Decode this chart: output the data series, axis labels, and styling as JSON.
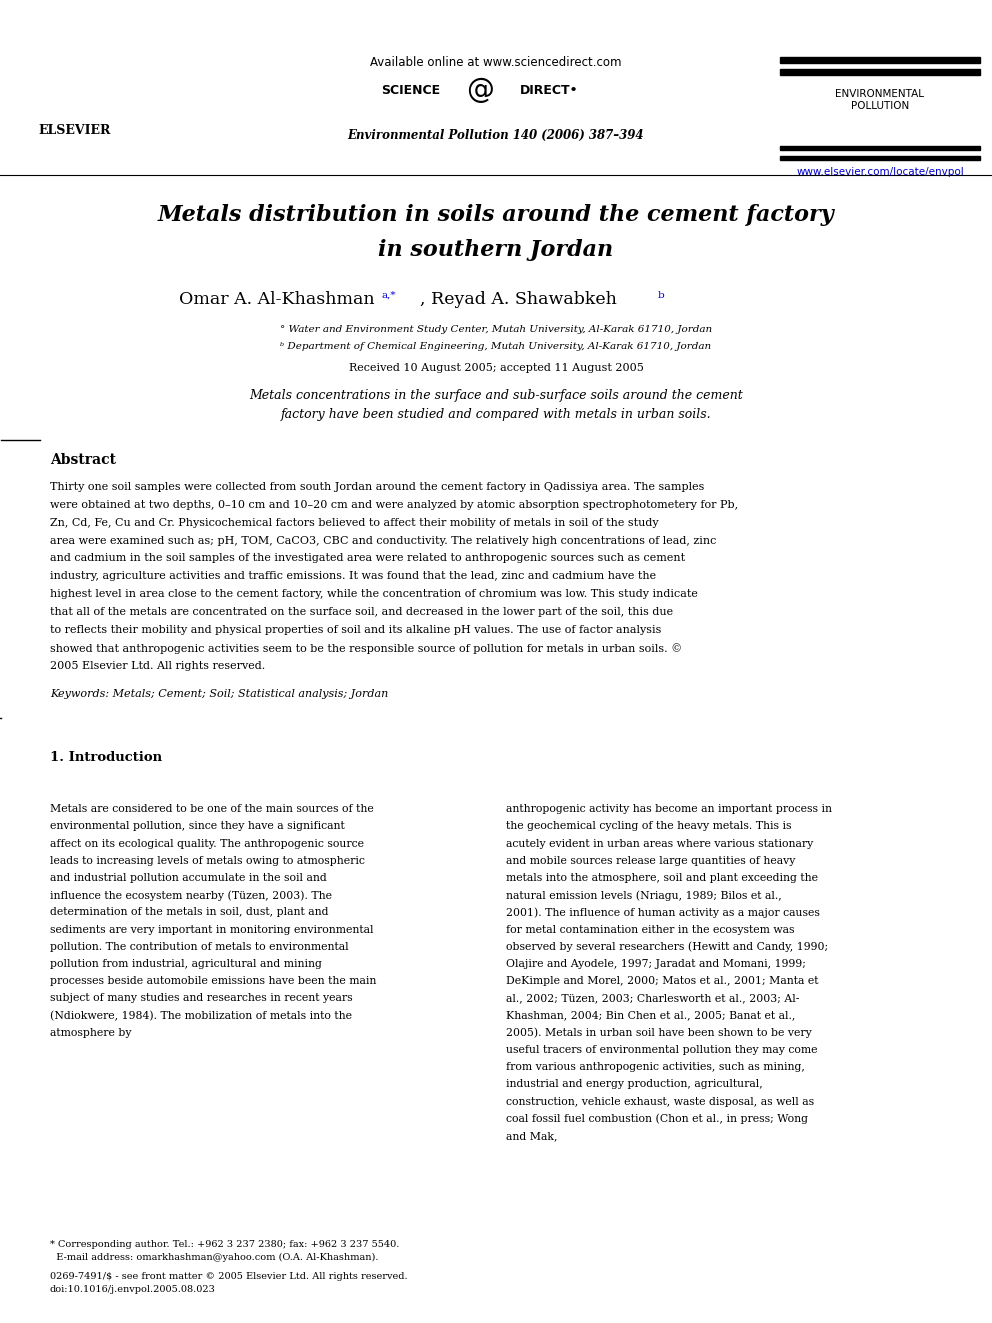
{
  "bg_color": "#ffffff",
  "title_line1": "Metals distribution in soils around the cement factory",
  "title_line2": "in southern Jordan",
  "authors": "Omar A. Al-Khashman ",
  "authors2": ", Reyad A. Shawabkeh ",
  "author_super1": "a,*",
  "author_super2": "b",
  "affil_a": "° Water and Environment Study Center, Mutah University, Al-Karak 61710, Jordan",
  "affil_b": "ᵇ Department of Chemical Engineering, Mutah University, Al-Karak 61710, Jordan",
  "received": "Received 10 August 2005; accepted 11 August 2005",
  "header_avail": "Available online at www.sciencedirect.com",
  "header_journal_abbr": "Environmental Pollution 140 (2006) 387–394",
  "header_journal": "ENVIRONMENTAL\nPOLLUTION",
  "header_url": "www.elsevier.com/locate/envpol",
  "elsevier_text": "ELSEVIER",
  "graphical_abstract": "Metals concentrations in the surface and sub-surface soils around the cement\nfactory have been studied and compared with metals in urban soils.",
  "abstract_title": "Abstract",
  "abstract_body": "Thirty one soil samples were collected from south Jordan around the cement factory in Qadissiya area. The samples were obtained at two depths, 0–10 cm and 10–20 cm and were analyzed by atomic absorption spectrophotometery for Pb, Zn, Cd, Fe, Cu and Cr. Physicochemical factors believed to affect their mobility of metals in soil of the study area were examined such as; pH, TOM, CaCO3, CBC and conductivity. The relatively high concentrations of lead, zinc and cadmium in the soil samples of the investigated area were related to anthropogenic sources such as cement industry, agriculture activities and traffic emissions. It was found that the lead, zinc and cadmium have the highest level in area close to the cement factory, while the concentration of chromium was low. This study indicate that all of the metals are concentrated on the surface soil, and decreased in the lower part of the soil, this due to reflects their mobility and physical properties of soil and its alkaline pH values. The use of factor analysis showed that anthropogenic activities seem to be the responsible source of pollution for metals in urban soils.\n© 2005 Elsevier Ltd. All rights reserved.",
  "keywords": "Keywords: Metals; Cement; Soil; Statistical analysis; Jordan",
  "intro_title": "1. Introduction",
  "intro_col1": "Metals are considered to be one of the main sources of the environmental pollution, since they have a significant affect on its ecological quality. The anthropogenic source leads to increasing levels of metals owing to atmospheric and industrial pollution accumulate in the soil and influence the ecosystem nearby (Tüzen, 2003). The determination of the metals in soil, dust, plant and sediments are very important in monitoring environmental pollution. The contribution of metals to environmental pollution from industrial, agricultural and mining processes beside automobile emissions have been the main subject of many studies and researches in recent years (Ndiokwere, 1984). The mobilization of metals into the atmosphere by",
  "intro_col2": "anthropogenic activity has become an important process in the geochemical cycling of the heavy metals. This is acutely evident in urban areas where various stationary and mobile sources release large quantities of heavy metals into the atmosphere, soil and plant exceeding the natural emission levels (Nriagu, 1989; Bilos et al., 2001). The influence of human activity as a major causes for metal contamination either in the ecosystem was observed by several researchers (Hewitt and Candy, 1990; Olajire and Ayodele, 1997; Jaradat and Momani, 1999; DeKimple and Morel, 2000; Matos et al., 2001; Manta et al., 2002; Tüzen, 2003; Charlesworth et al., 2003; Al-Khashman, 2004; Bin Chen et al., 2005; Banat et al., 2005). Metals in urban soil have been shown to be very useful tracers of environmental pollution they may come from various anthropogenic activities, such as mining, industrial and energy production, agricultural, construction, vehicle exhaust, waste disposal, as well as coal fossil fuel combustion (Chon et al., in press; Wong and Mak,",
  "footer_note": "* Corresponding author. Tel.: +962 3 237 2380; fax: +962 3 237 5540.\n  E-mail address: omarkhashman@yahoo.com (O.A. Al-Khashman).",
  "footer_issn": "0269-7491/$ - see front matter © 2005 Elsevier Ltd. All rights reserved.\ndoi:10.1016/j.envpol.2005.08.023"
}
